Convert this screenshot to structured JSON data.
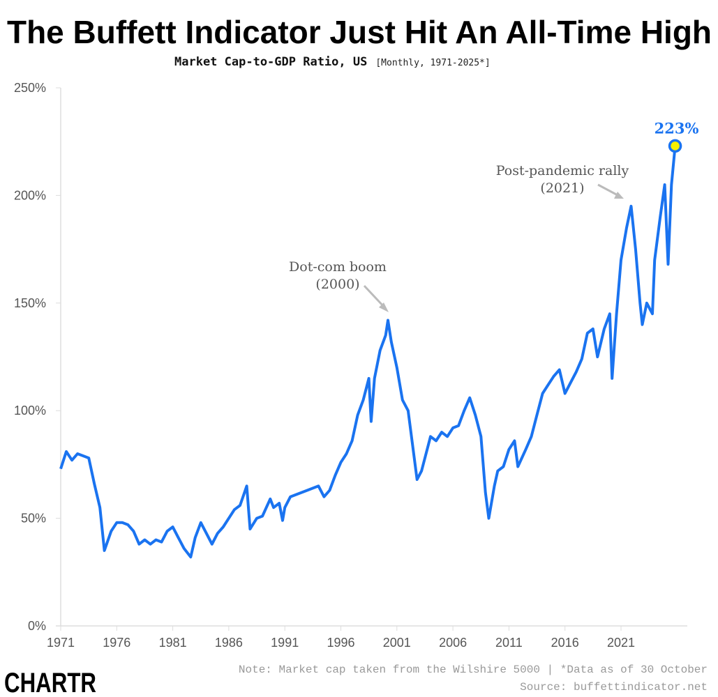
{
  "chart_data": {
    "type": "line",
    "title": "The Buffett Indicator Just Hit An All-Time High",
    "subtitle": "Market Cap-to-GDP Ratio, US",
    "subtitle_bracket": "[Monthly, 1971-2025*]",
    "xlabel": "",
    "ylabel": "",
    "xlim": [
      1971,
      2026.5
    ],
    "ylim": [
      0,
      250
    ],
    "x_ticks": [
      1971,
      1976,
      1981,
      1986,
      1991,
      1996,
      2001,
      2006,
      2011,
      2016,
      2021
    ],
    "x_tick_labels": [
      "1971",
      "1976",
      "1981",
      "1986",
      "1991",
      "1996",
      "2001",
      "2006",
      "2011",
      "2016",
      "2021"
    ],
    "y_ticks": [
      0,
      50,
      100,
      150,
      200,
      250
    ],
    "y_tick_labels": [
      "0%",
      "50%",
      "100%",
      "150%",
      "200%",
      "250%"
    ],
    "grid": false,
    "line_color": "#1a73f0",
    "marker_fill": "#f5f000",
    "series": [
      {
        "x": [
          1971.0,
          1971.5,
          1972.0,
          1972.5,
          1973.0,
          1973.5,
          1974.0,
          1974.5,
          1974.9,
          1975.5,
          1976.0,
          1976.5,
          1977.0,
          1977.5,
          1978.0,
          1978.5,
          1979.0,
          1979.5,
          1980.0,
          1980.5,
          1981.0,
          1981.5,
          1982.0,
          1982.6,
          1983.0,
          1983.5,
          1984.0,
          1984.5,
          1985.0,
          1985.5,
          1986.0,
          1986.5,
          1987.0,
          1987.6,
          1987.9,
          1988.5,
          1989.0,
          1989.7,
          1990.0,
          1990.5,
          1990.8,
          1991.0,
          1991.5,
          1992.0,
          1993.0,
          1994.0,
          1994.5,
          1995.0,
          1995.5,
          1996.0,
          1996.5,
          1997.0,
          1997.5,
          1998.0,
          1998.5,
          1998.7,
          1999.0,
          1999.5,
          2000.0,
          2000.2,
          2000.5,
          2001.0,
          2001.5,
          2002.0,
          2002.5,
          2002.8,
          2003.2,
          2003.8,
          2004.0,
          2004.5,
          2005.0,
          2005.5,
          2006.0,
          2006.5,
          2007.0,
          2007.5,
          2008.0,
          2008.5,
          2008.9,
          2009.2,
          2009.7,
          2010.0,
          2010.5,
          2011.0,
          2011.5,
          2011.8,
          2012.5,
          2013.0,
          2013.5,
          2014.0,
          2014.5,
          2015.0,
          2015.5,
          2016.0,
          2016.5,
          2017.0,
          2017.5,
          2018.0,
          2018.5,
          2018.9,
          2019.5,
          2020.0,
          2020.2,
          2020.6,
          2021.0,
          2021.5,
          2021.9,
          2022.3,
          2022.7,
          2022.9,
          2023.3,
          2023.8,
          2024.0,
          2024.5,
          2024.9,
          2025.2,
          2025.5,
          2025.83
        ],
        "values": [
          73,
          81,
          77,
          80,
          79,
          78,
          66,
          55,
          35,
          44,
          48,
          48,
          47,
          44,
          38,
          40,
          38,
          40,
          39,
          44,
          46,
          41,
          36,
          32,
          41,
          48,
          43,
          38,
          43,
          46,
          50,
          54,
          56,
          65,
          45,
          50,
          51,
          59,
          55,
          57,
          49,
          55,
          60,
          61,
          63,
          65,
          60,
          63,
          70,
          76,
          80,
          86,
          98,
          105,
          115,
          95,
          115,
          128,
          135,
          142,
          132,
          120,
          105,
          100,
          80,
          68,
          72,
          84,
          88,
          86,
          90,
          88,
          92,
          93,
          100,
          106,
          98,
          88,
          62,
          50,
          65,
          72,
          74,
          82,
          86,
          74,
          82,
          88,
          98,
          108,
          112,
          116,
          119,
          108,
          113,
          118,
          124,
          136,
          138,
          125,
          138,
          145,
          115,
          145,
          170,
          185,
          195,
          175,
          150,
          140,
          150,
          145,
          170,
          190,
          205,
          168,
          205,
          223
        ]
      }
    ],
    "annotations": [
      {
        "lines": [
          "Dot-com boom",
          "(2000)"
        ],
        "x": 2000.2,
        "y": 142
      },
      {
        "lines": [
          "Post-pandemic rally",
          "(2021)"
        ],
        "x": 2021.9,
        "y": 195
      },
      {
        "text": "223%",
        "x": 2025.83,
        "y": 223
      }
    ]
  },
  "footer": {
    "note": "Note: Market cap taken from the Wilshire 5000 | *Data as of 30 October",
    "source": "Source: buffettindicator.net",
    "logo": "CHARTR"
  }
}
